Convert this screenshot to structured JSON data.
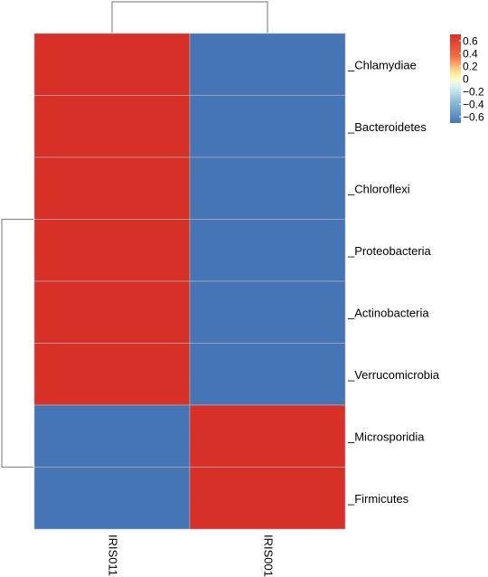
{
  "chart_data": {
    "type": "heatmap",
    "columns": [
      "IRIS011",
      "IRIS001"
    ],
    "rows": [
      "Chlamydiae",
      "Bacteroidetes",
      "Chloroflexi",
      "Proteobacteria",
      "Actinobacteria",
      "Verrucomicrobia",
      "Microsporidia",
      "Firmicutes"
    ],
    "values": [
      [
        0.707,
        -0.707
      ],
      [
        0.707,
        -0.707
      ],
      [
        0.707,
        -0.707
      ],
      [
        0.707,
        -0.707
      ],
      [
        0.707,
        -0.707
      ],
      [
        0.707,
        -0.707
      ],
      [
        -0.707,
        0.707
      ],
      [
        -0.707,
        0.707
      ]
    ],
    "colorbar": {
      "range": [
        -0.7,
        0.7
      ],
      "ticks": [
        0.6,
        0.4,
        0.2,
        0,
        -0.2,
        -0.4,
        -0.6
      ],
      "tick_labels": [
        "0.6",
        "0.4",
        "0.2",
        "0",
        "−0.2",
        "−0.4",
        "−0.6"
      ],
      "colors": [
        "#4575b4",
        "#ffffbf",
        "#d73027"
      ]
    },
    "row_dendrogram": "Microsporidia+Firmicutes vs rest",
    "column_dendrogram": "IRIS011 vs IRIS001"
  }
}
